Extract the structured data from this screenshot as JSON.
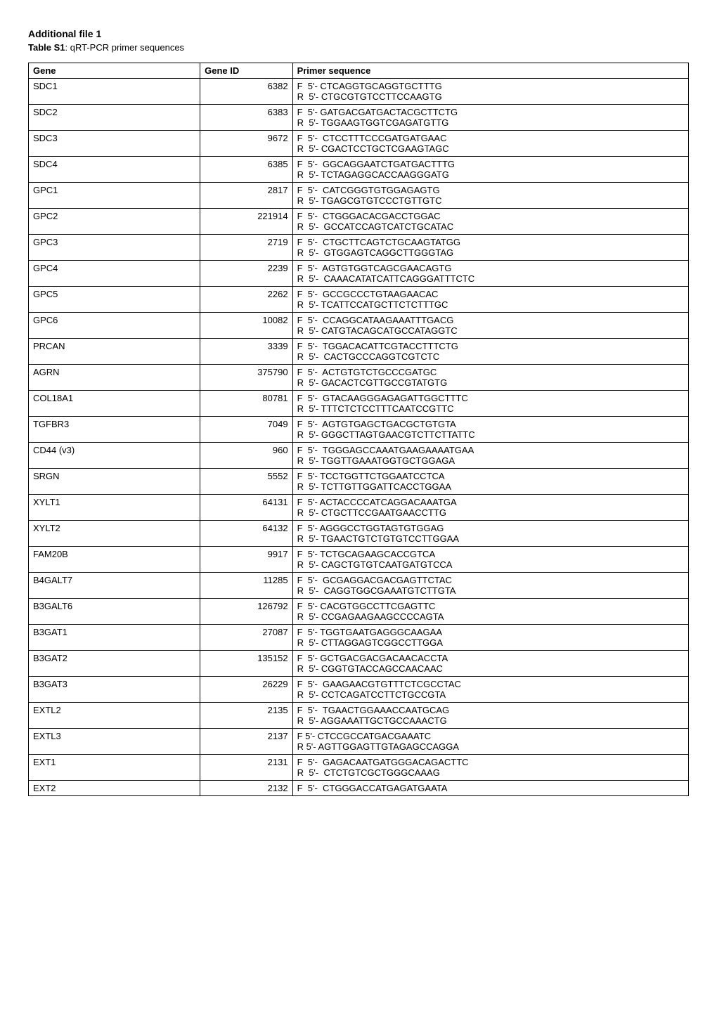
{
  "heading": "Additional file 1",
  "subtitle_bold": "Table S1",
  "subtitle_rest": ": qRT-PCR primer sequences",
  "columns": {
    "gene": "Gene",
    "gene_id": "Gene ID",
    "primer": "Primer sequence"
  },
  "rows": [
    {
      "gene": "SDC1",
      "id": "6382",
      "f": "F  5'- CTCAGGTGCAGGTGCTTTG",
      "r": "R  5'- CTGCGTGTCCTTCCAAGTG"
    },
    {
      "gene": "SDC2",
      "id": "6383",
      "f": "F  5'- GATGACGATGACTACGCTTCTG",
      "r": "R  5'- TGGAAGTGGTCGAGATGTTG"
    },
    {
      "gene": "SDC3",
      "id": "9672",
      "f": "F  5'-  CTCCTTTCCCGATGATGAAC",
      "r": "R  5'- CGACTCCTGCTCGAAGTAGC"
    },
    {
      "gene": "SDC4",
      "id": "6385",
      "f": "F  5'-  GGCAGGAATCTGATGACTTTG",
      "r": "R  5'- TCTAGAGGCACCAAGGGATG"
    },
    {
      "gene": "GPC1",
      "id": "2817",
      "f": "F  5'-  CATCGGGTGTGGAGAGTG",
      "r": "R  5'- TGAGCGTGTCCCTGTTGTC"
    },
    {
      "gene": "GPC2",
      "id": "221914",
      "f": "F  5'-  CTGGGACACGACCTGGAC",
      "r": "R  5'-  GCCATCCAGTCATCTGCATAC"
    },
    {
      "gene": "GPC3",
      "id": "2719",
      "f": "F  5'-  CTGCTTCAGTCTGCAAGTATGG",
      "r": "R  5'-  GTGGAGTCAGGCTTGGGTAG"
    },
    {
      "gene": "GPC4",
      "id": "2239",
      "f": "F  5'-  AGTGTGGTCAGCGAACAGTG",
      "r": "R  5'-  CAAACATATCATTCAGGGATTTCTC"
    },
    {
      "gene": "GPC5",
      "id": "2262",
      "f": "F  5'-  GCCGCCCTGTAAGAACAC",
      "r": "R  5'- TCATTCCATGCTTCTCTTTGC"
    },
    {
      "gene": "GPC6",
      "id": "10082",
      "f": "F  5'-  CCAGGCATAAGAAATTTGACG",
      "r": "R  5'- CATGTACAGCATGCCATAGGTC"
    },
    {
      "gene": "PRCAN",
      "id": "3339",
      "f": "F  5'-  TGGACACATTCGTACCTTTCTG",
      "r": "R  5'-  CACTGCCCAGGTCGTCTC"
    },
    {
      "gene": "AGRN",
      "id": "375790",
      "f": "F  5'-  ACTGTGTCTGCCCGATGC",
      "r": "R  5'- GACACTCGTTGCCGTATGTG"
    },
    {
      "gene": "COL18A1",
      "id": "80781",
      "f": "F  5'-  GTACAAGGGAGAGATTGGCTTTC",
      "r": "R  5'- TTTCTCTCCTTTCAATCCGTTC"
    },
    {
      "gene": "TGFBR3",
      "id": "7049",
      "f": "F  5'-  AGTGTGAGCTGACGCTGTGTA",
      "r": "R  5'- GGGCTTAGTGAACGTCTTCTTATTC"
    },
    {
      "gene": "CD44 (v3)",
      "id": "960",
      "f": "F  5'-  TGGGAGCCAAATGAAGAAAATGAA",
      "r": "R  5'- TGGTTGAAATGGTGCTGGAGA"
    },
    {
      "gene": "SRGN",
      "id": "5552",
      "f": "F  5'- TCCTGGTTCTGGAATCCTCA",
      "r": "R  5'- TCTTGTTGGATTCACCTGGAA"
    },
    {
      "gene": "XYLT1",
      "id": "64131",
      "f": "F  5'- ACTACCCCATCAGGACAAATGA",
      "r": "R  5'- CTGCTTCCGAATGAACCTTG"
    },
    {
      "gene": "XYLT2",
      "id": "64132",
      "f": "F  5'- AGGGCCTGGTAGTGTGGAG",
      "r": "R  5'- TGAACTGTCTGTGTCCTTGGAA"
    },
    {
      "gene": "FAM20B",
      "id": "9917",
      "f": "F  5'- TCTGCAGAAGCACCGTCA",
      "r": "R  5'- CAGCTGTGTCAATGATGTCCA"
    },
    {
      "gene": "B4GALT7",
      "id": "11285",
      "f": "F  5'-  GCGAGGACGACGAGTTCTAC",
      "r": "R  5'-  CAGGTGGCGAAATGTCTTGTA"
    },
    {
      "gene": "B3GALT6",
      "id": "126792",
      "f": "F  5'- CACGTGGCCTTCGAGTTC",
      "r": "R  5'- CCGAGAAGAAGCCCCAGTA"
    },
    {
      "gene": "B3GAT1",
      "id": "27087",
      "f": "F  5'- TGGTGAATGAGGGCAAGAA",
      "r": "R  5'- CTTAGGAGTCGGCCTTGGA"
    },
    {
      "gene": "B3GAT2",
      "id": "135152",
      "f": "F  5'- GCTGACGACGACAACACCTA",
      "r": "R  5'- CGGTGTACCAGCCAACAAC"
    },
    {
      "gene": "B3GAT3",
      "id": "26229",
      "f": "F  5'-  GAAGAACGTGTTTCTCGCCTAC",
      "r": "R  5'- CCTCAGATCCTTCTGCCGTA"
    },
    {
      "gene": "EXTL2",
      "id": "2135",
      "f": "F  5'-  TGAACTGGAAACCAATGCAG",
      "r": "R  5'- AGGAAATTGCTGCCAAACTG"
    },
    {
      "gene": "EXTL3",
      "id": "2137",
      "f": "F 5'- CTCCGCCATGACGAAATC",
      "r": "R 5'- AGTTGGAGTTGTAGAGCCAGGA"
    },
    {
      "gene": "EXT1",
      "id": "2131",
      "f": "F  5'-  GAGACAATGATGGGACAGACTTC",
      "r": "R  5'-  CTCTGTCGCTGGGCAAAG"
    },
    {
      "gene": "EXT2",
      "id": "2132",
      "f": "F  5'-  CTGGGACCATGAGATGAATA",
      "r": ""
    }
  ]
}
